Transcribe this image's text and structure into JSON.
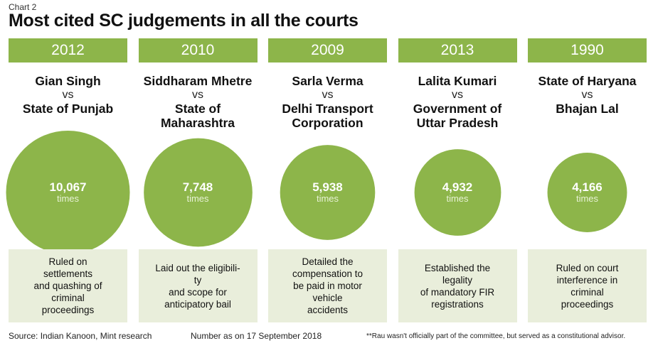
{
  "header": {
    "tag": "Chart 2",
    "title": "Most cited SC judgements in all the courts"
  },
  "chart_data": {
    "type": "bubble",
    "title": "Most cited SC judgements in all the courts",
    "unit": "times",
    "colors": {
      "accent": "#8db54a",
      "panel": "#e9eedb"
    },
    "items": [
      {
        "year": "2012",
        "party1": [
          "Gian Singh"
        ],
        "vs": "vs",
        "party2": [
          "State of Punjab"
        ],
        "value": 10067,
        "value_label": "10,067",
        "summary": [
          "Ruled on",
          "settlements",
          "and quashing of",
          "criminal",
          "proceedings"
        ]
      },
      {
        "year": "2010",
        "party1": [
          "Siddharam Mhetre"
        ],
        "vs": "vs",
        "party2": [
          "State of",
          "Maharashtra"
        ],
        "value": 7748,
        "value_label": "7,748",
        "summary": [
          "Laid out the eligibili-",
          "ty",
          "and scope for",
          "anticipatory bail"
        ]
      },
      {
        "year": "2009",
        "party1": [
          "Sarla Verma"
        ],
        "vs": "vs",
        "party2": [
          "Delhi Transport",
          "Corporation"
        ],
        "value": 5938,
        "value_label": "5,938",
        "summary": [
          "Detailed the",
          "compensation to",
          "be paid in motor",
          "vehicle",
          "accidents"
        ]
      },
      {
        "year": "2013",
        "party1": [
          "Lalita Kumari"
        ],
        "vs": "vs",
        "party2": [
          "Government of",
          "Uttar Pradesh"
        ],
        "value": 4932,
        "value_label": "4,932",
        "summary": [
          "Established the",
          "legality",
          "of mandatory FIR",
          "registrations"
        ]
      },
      {
        "year": "1990",
        "party1": [
          "State of Haryana"
        ],
        "vs": "vs",
        "party2": [
          "Bhajan Lal"
        ],
        "value": 4166,
        "value_label": "4,166",
        "summary": [
          "Ruled on court",
          "interference in",
          "criminal",
          "proceedings"
        ]
      }
    ]
  },
  "footer": {
    "source": "Source: Indian Kanoon, Mint research",
    "date_note": "Number as on 17 September 2018",
    "footnote": "**Rau wasn't officially part of the committee, but served as a constitutional advisor."
  }
}
